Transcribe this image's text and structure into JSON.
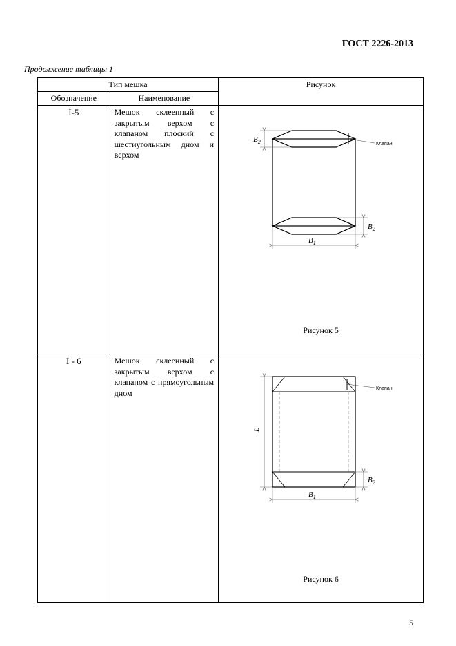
{
  "document_id": "ГОСТ 2226-2013",
  "table_continuation": "Продолжение таблицы 1",
  "page_number": "5",
  "headers": {
    "type_span": "Тип мешка",
    "figure": "Рисунок",
    "designation": "Обозначение",
    "name": "Наименование"
  },
  "rows": [
    {
      "designation": "I-5",
      "name": "Мешок склеенный с закрытым верхом с клапаном плоский с шестиугольным дном и верхом",
      "figure_caption": "Рисунок 5",
      "diagram": {
        "type": "hexagonal",
        "stroke": "#000000",
        "thin_stroke": "#444444",
        "body_w": 120,
        "body_h": 150,
        "hex_inset": 28,
        "hex_h": 24,
        "labels": {
          "B1": "В",
          "B1_sub": "1",
          "B2": "В",
          "B2_sub": "2",
          "valve": "Клапан"
        }
      }
    },
    {
      "designation": "I - 6",
      "name": "Мешок склеенный с закрытым верхом с клапаном с прямоугольным дном",
      "figure_caption": "Рисунок 6",
      "diagram": {
        "type": "rectangular",
        "stroke": "#000000",
        "thin_stroke": "#444444",
        "body_w": 120,
        "body_h": 160,
        "rect_h": 22,
        "labels": {
          "B1": "В",
          "B1_sub": "1",
          "B2": "В",
          "B2_sub": "2",
          "L": "L",
          "valve": "Клапан"
        }
      }
    }
  ]
}
